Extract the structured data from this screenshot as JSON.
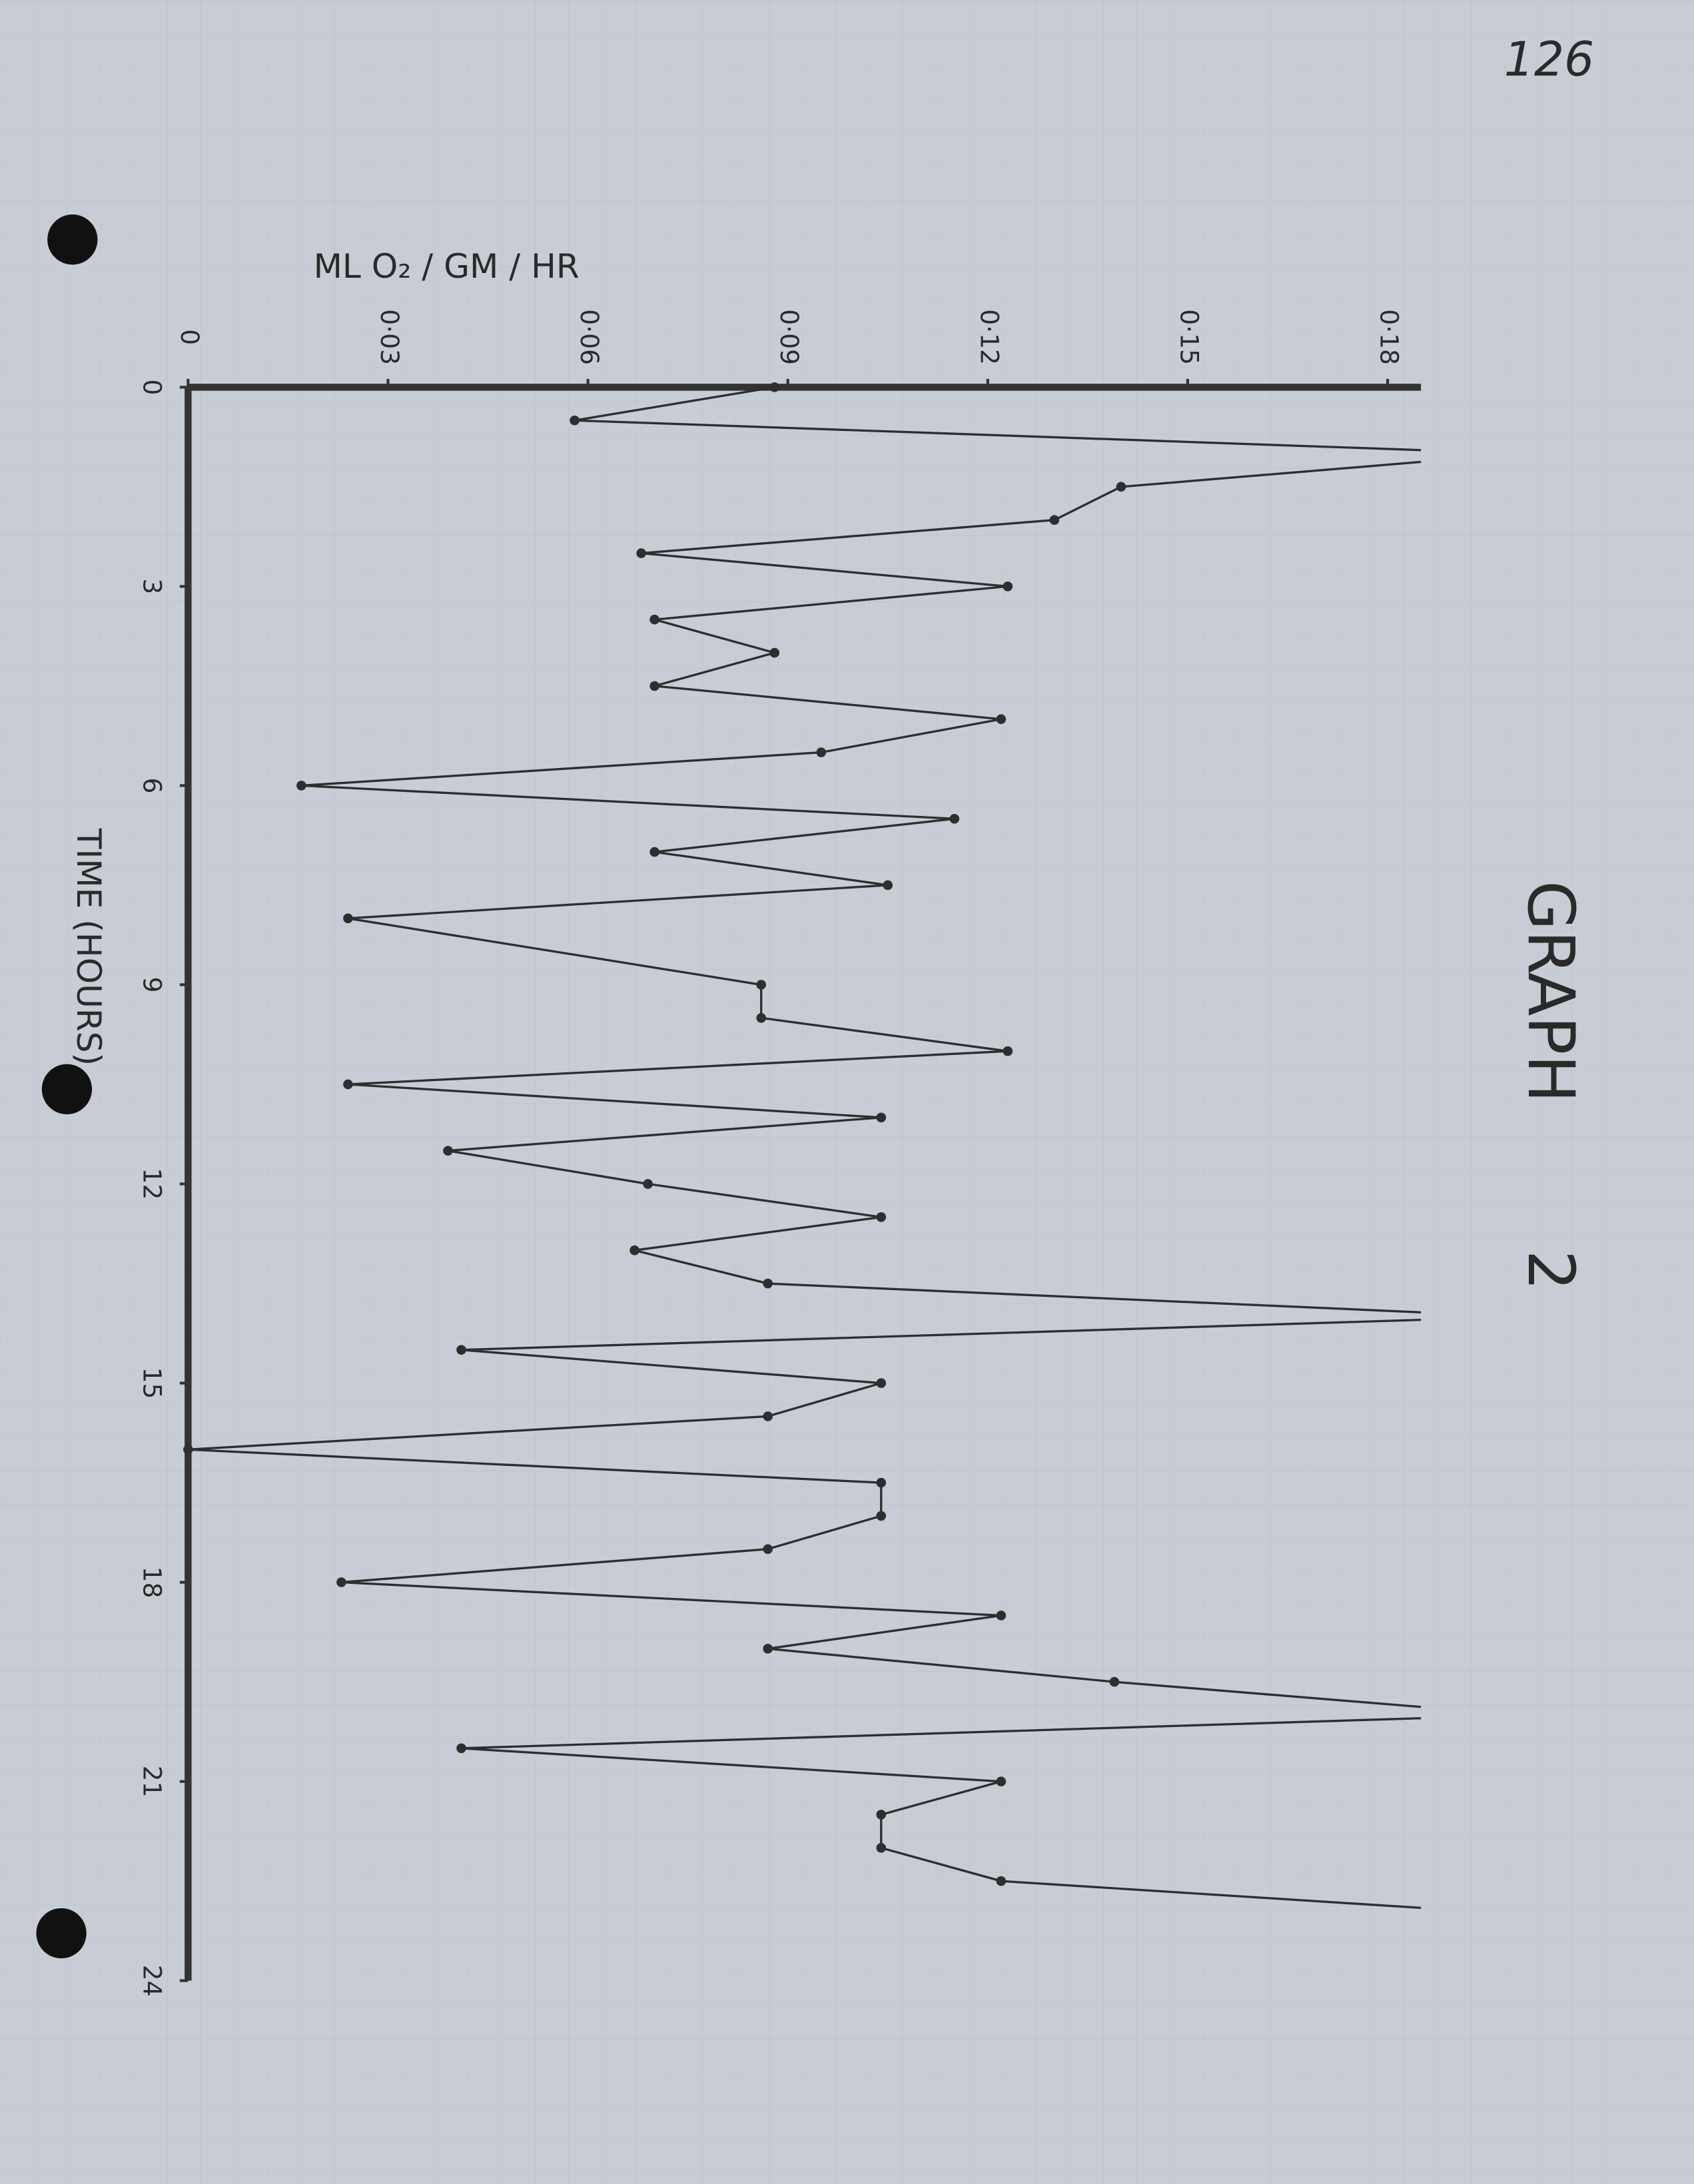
{
  "page_number": "126",
  "chart_data": {
    "type": "line",
    "title": "GRAPH",
    "title_number": "2",
    "x_label": "TIME (HOURS)",
    "y_label": "ML  O₂ / GM / HR",
    "x": [
      0,
      0.5,
      1,
      1.5,
      2,
      2.5,
      3,
      3.5,
      4,
      4.5,
      5,
      5.5,
      6,
      6.5,
      7,
      7.5,
      8,
      9,
      9.5,
      10,
      10.5,
      11,
      11.5,
      12,
      12.5,
      13,
      13.5,
      14,
      14.5,
      15,
      15.5,
      16,
      16.5,
      17,
      17.5,
      18,
      18.5,
      19,
      19.5,
      20,
      20.5,
      21,
      21.5,
      22,
      22.5,
      23
    ],
    "series": [
      {
        "color": "#2e2e2e",
        "values": [
          0.088,
          0.058,
          0.2,
          0.14,
          0.13,
          0.068,
          0.123,
          0.07,
          0.088,
          0.07,
          0.122,
          0.095,
          0.017,
          0.115,
          0.07,
          0.105,
          0.024,
          0.086,
          0.086,
          0.123,
          0.024,
          0.104,
          0.039,
          0.069,
          0.104,
          0.067,
          0.087,
          0.2,
          0.041,
          0.104,
          0.087,
          0,
          0.104,
          0.104,
          0.087,
          0.023,
          0.122,
          0.087,
          0.139,
          0.2,
          0.041,
          0.122,
          0.104,
          0.104,
          0.122,
          0.2
        ]
      }
    ],
    "xlim": [
      0,
      24
    ],
    "xticks": [
      0,
      3,
      6,
      9,
      12,
      15,
      18,
      21,
      24
    ],
    "ylim": [
      0,
      0.185
    ],
    "yticks": [
      0,
      {
        "value": 0.03,
        "label": "0·03"
      },
      {
        "value": 0.06,
        "label": "0·06"
      },
      {
        "value": 0.09,
        "label": "0·09"
      },
      {
        "value": 0.12,
        "label": "0·12"
      },
      {
        "value": 0.15,
        "label": "0·15"
      },
      {
        "value": 0.18,
        "label": "0·18"
      }
    ],
    "grid": false
  }
}
